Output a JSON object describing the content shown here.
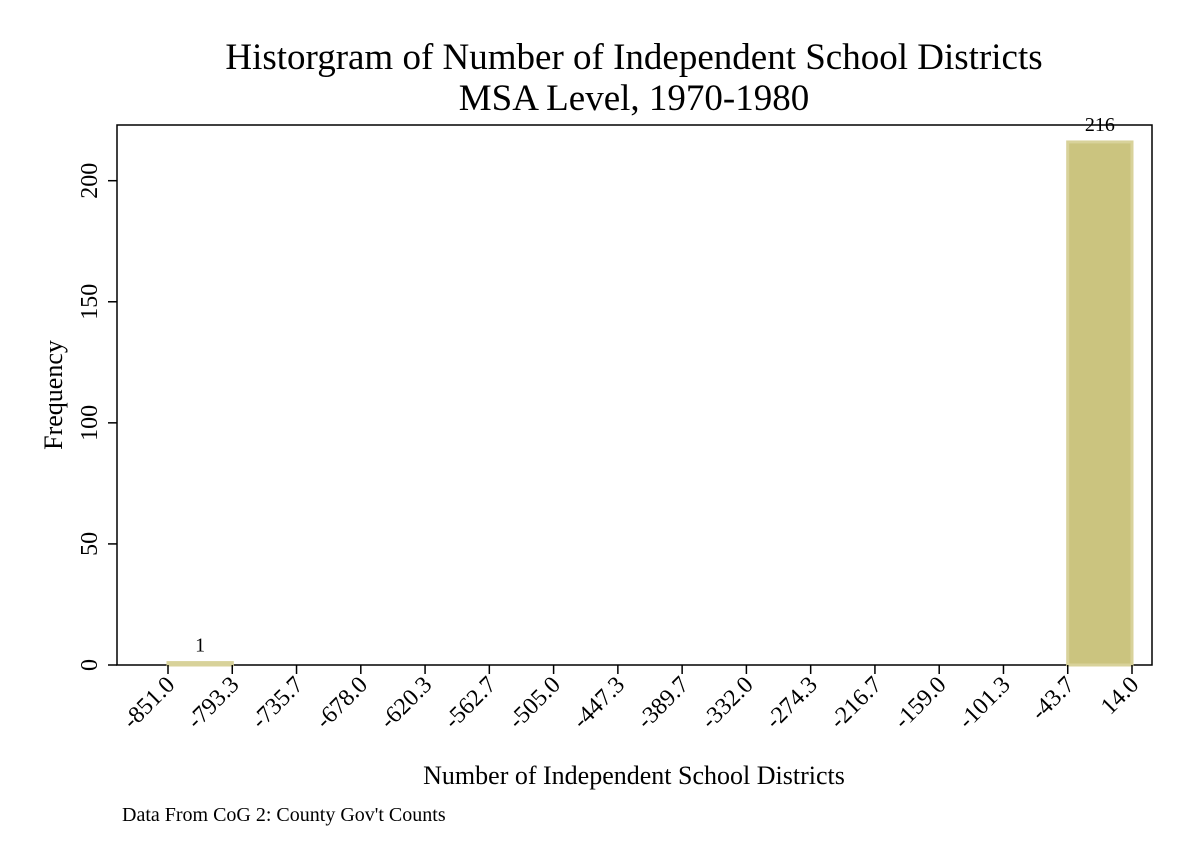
{
  "chart_data": {
    "type": "bar",
    "title": [
      "Historgram of Number of Independent School Districts",
      "MSA Level, 1970-1980"
    ],
    "xlabel": "Number of Independent School Districts",
    "ylabel": "Frequency",
    "note": "Data From CoG 2: County Gov't Counts",
    "x_ticks": [
      "-851.0",
      "-793.3",
      "-735.7",
      "-678.0",
      "-620.3",
      "-562.7",
      "-505.0",
      "-447.3",
      "-389.7",
      "-332.0",
      "-274.3",
      "-216.7",
      "-159.0",
      "-101.3",
      "-43.7",
      "14.0"
    ],
    "y_ticks": [
      0,
      50,
      100,
      150,
      200
    ],
    "xlim": [
      -851.0,
      14.0
    ],
    "ylim": [
      0,
      223
    ],
    "bins": [
      {
        "start": -851.0,
        "end": -793.3,
        "value": 1,
        "label": "1"
      },
      {
        "start": -43.7,
        "end": 14.0,
        "value": 216,
        "label": "216"
      }
    ],
    "grid": false,
    "colors": {
      "bar_fill": "#cbc47f",
      "bar_stroke": "#d8d29a"
    }
  }
}
